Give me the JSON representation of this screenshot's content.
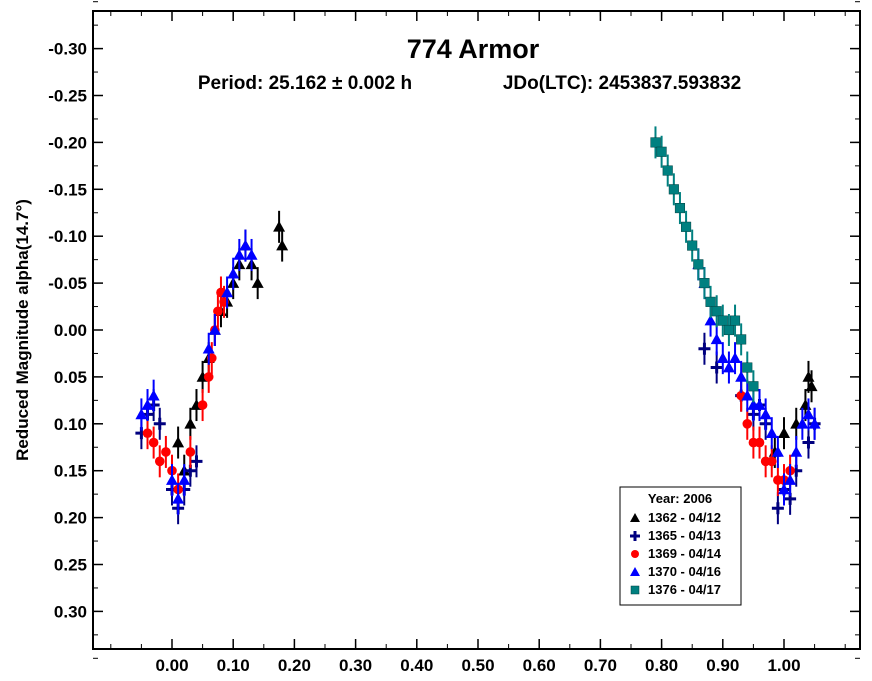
{
  "chart_data": {
    "type": "scatter",
    "title": "774 Armor",
    "subtitle_period": "Period: 25.162 ± 0.002 h",
    "subtitle_epoch": "JDo(LTC): 2453837.593832",
    "xlabel": "",
    "ylabel": "Reduced Magnitude alpha(14.7°)",
    "xlim": [
      -0.12,
      1.12
    ],
    "ylim": [
      -0.35,
      0.35
    ],
    "y_inverted": true,
    "x_ticks": [
      "0.00",
      "0.10",
      "0.20",
      "0.30",
      "0.40",
      "0.50",
      "0.60",
      "0.70",
      "0.80",
      "0.90",
      "1.00"
    ],
    "y_ticks": [
      "-0.30",
      "-0.25",
      "-0.20",
      "-0.15",
      "-0.10",
      "-0.05",
      "0.00",
      "0.05",
      "0.10",
      "0.15",
      "0.20",
      "0.25",
      "0.30"
    ],
    "legend": {
      "title": "Year: 2006",
      "position": "bottom-right",
      "entries": [
        {
          "label": "1362 - 04/12",
          "marker": "triangle",
          "color": "#000000"
        },
        {
          "label": "1365 - 04/13",
          "marker": "cross",
          "color": "#00007f"
        },
        {
          "label": "1369 - 04/14",
          "marker": "circle",
          "color": "#ff0000"
        },
        {
          "label": "1370 - 04/16",
          "marker": "triangle",
          "color": "#0000ff"
        },
        {
          "label": "1376 - 04/17",
          "marker": "square",
          "color": "#008080"
        }
      ]
    },
    "series": [
      {
        "name": "1362 - 04/12",
        "marker": "triangle",
        "color": "#000000",
        "points": [
          [
            0.01,
            0.12
          ],
          [
            0.02,
            0.15
          ],
          [
            0.03,
            0.1
          ],
          [
            0.04,
            0.08
          ],
          [
            0.05,
            0.05
          ],
          [
            0.06,
            0.03
          ],
          [
            0.07,
            0.0
          ],
          [
            0.08,
            -0.02
          ],
          [
            0.09,
            -0.03
          ],
          [
            0.1,
            -0.05
          ],
          [
            0.11,
            -0.07
          ],
          [
            0.12,
            -0.09
          ],
          [
            0.13,
            -0.07
          ],
          [
            0.14,
            -0.05
          ],
          [
            0.175,
            -0.11
          ],
          [
            0.18,
            -0.09
          ],
          [
            0.985,
            0.13
          ],
          [
            1.0,
            0.11
          ],
          [
            1.02,
            0.1
          ],
          [
            1.035,
            0.08
          ],
          [
            1.04,
            0.05
          ],
          [
            1.045,
            0.06
          ]
        ]
      },
      {
        "name": "1365 - 04/13",
        "marker": "cross",
        "color": "#00007f",
        "points": [
          [
            -0.05,
            0.11
          ],
          [
            -0.04,
            0.09
          ],
          [
            -0.03,
            0.08
          ],
          [
            -0.02,
            0.1
          ],
          [
            0.0,
            0.17
          ],
          [
            0.01,
            0.19
          ],
          [
            0.02,
            0.17
          ],
          [
            0.03,
            0.15
          ],
          [
            0.04,
            0.14
          ],
          [
            0.87,
            0.02
          ],
          [
            0.89,
            0.04
          ],
          [
            0.93,
            0.07
          ],
          [
            0.95,
            0.09
          ],
          [
            0.96,
            0.08
          ],
          [
            0.97,
            0.1
          ],
          [
            0.99,
            0.19
          ],
          [
            1.0,
            0.17
          ],
          [
            1.01,
            0.18
          ],
          [
            1.02,
            0.15
          ],
          [
            1.04,
            0.12
          ],
          [
            1.05,
            0.1
          ]
        ]
      },
      {
        "name": "1369 - 04/14",
        "marker": "circle",
        "color": "#ff0000",
        "points": [
          [
            -0.04,
            0.11
          ],
          [
            -0.03,
            0.12
          ],
          [
            -0.02,
            0.14
          ],
          [
            -0.01,
            0.13
          ],
          [
            0.0,
            0.15
          ],
          [
            0.01,
            0.17
          ],
          [
            0.03,
            0.13
          ],
          [
            0.05,
            0.08
          ],
          [
            0.06,
            0.05
          ],
          [
            0.065,
            0.03
          ],
          [
            0.07,
            0.0
          ],
          [
            0.075,
            -0.02
          ],
          [
            0.08,
            -0.04
          ],
          [
            0.085,
            -0.03
          ],
          [
            0.93,
            0.07
          ],
          [
            0.94,
            0.1
          ],
          [
            0.95,
            0.12
          ],
          [
            0.96,
            0.12
          ],
          [
            0.97,
            0.14
          ],
          [
            0.98,
            0.14
          ],
          [
            0.99,
            0.16
          ],
          [
            1.0,
            0.16
          ],
          [
            1.01,
            0.15
          ]
        ]
      },
      {
        "name": "1370 - 04/16",
        "marker": "triangle",
        "color": "#0000ff",
        "points": [
          [
            -0.05,
            0.09
          ],
          [
            -0.04,
            0.08
          ],
          [
            -0.03,
            0.07
          ],
          [
            0.0,
            0.16
          ],
          [
            0.01,
            0.18
          ],
          [
            0.02,
            0.16
          ],
          [
            0.06,
            0.02
          ],
          [
            0.07,
            0.0
          ],
          [
            0.09,
            -0.04
          ],
          [
            0.1,
            -0.06
          ],
          [
            0.11,
            -0.08
          ],
          [
            0.12,
            -0.09
          ],
          [
            0.13,
            -0.08
          ],
          [
            0.86,
            -0.07
          ],
          [
            0.87,
            -0.05
          ],
          [
            0.88,
            -0.01
          ],
          [
            0.89,
            0.01
          ],
          [
            0.9,
            0.03
          ],
          [
            0.91,
            0.04
          ],
          [
            0.92,
            0.03
          ],
          [
            0.93,
            0.05
          ],
          [
            0.94,
            0.07
          ],
          [
            0.95,
            0.08
          ],
          [
            0.96,
            0.08
          ],
          [
            0.97,
            0.09
          ],
          [
            0.98,
            0.11
          ],
          [
            0.99,
            0.13
          ],
          [
            1.0,
            0.17
          ],
          [
            1.01,
            0.16
          ],
          [
            1.02,
            0.13
          ],
          [
            1.03,
            0.1
          ],
          [
            1.04,
            0.09
          ],
          [
            1.05,
            0.1
          ]
        ]
      },
      {
        "name": "1376 - 04/17",
        "marker": "square",
        "color": "#008080",
        "points": [
          [
            0.79,
            -0.2
          ],
          [
            0.8,
            -0.19
          ],
          [
            0.81,
            -0.17
          ],
          [
            0.82,
            -0.15
          ],
          [
            0.83,
            -0.13
          ],
          [
            0.84,
            -0.11
          ],
          [
            0.85,
            -0.09
          ],
          [
            0.86,
            -0.07
          ],
          [
            0.87,
            -0.05
          ],
          [
            0.88,
            -0.03
          ],
          [
            0.89,
            -0.02
          ],
          [
            0.9,
            -0.01
          ],
          [
            0.91,
            0.0
          ],
          [
            0.92,
            -0.01
          ],
          [
            0.93,
            0.01
          ],
          [
            0.94,
            0.04
          ],
          [
            0.95,
            0.06
          ]
        ]
      }
    ]
  }
}
